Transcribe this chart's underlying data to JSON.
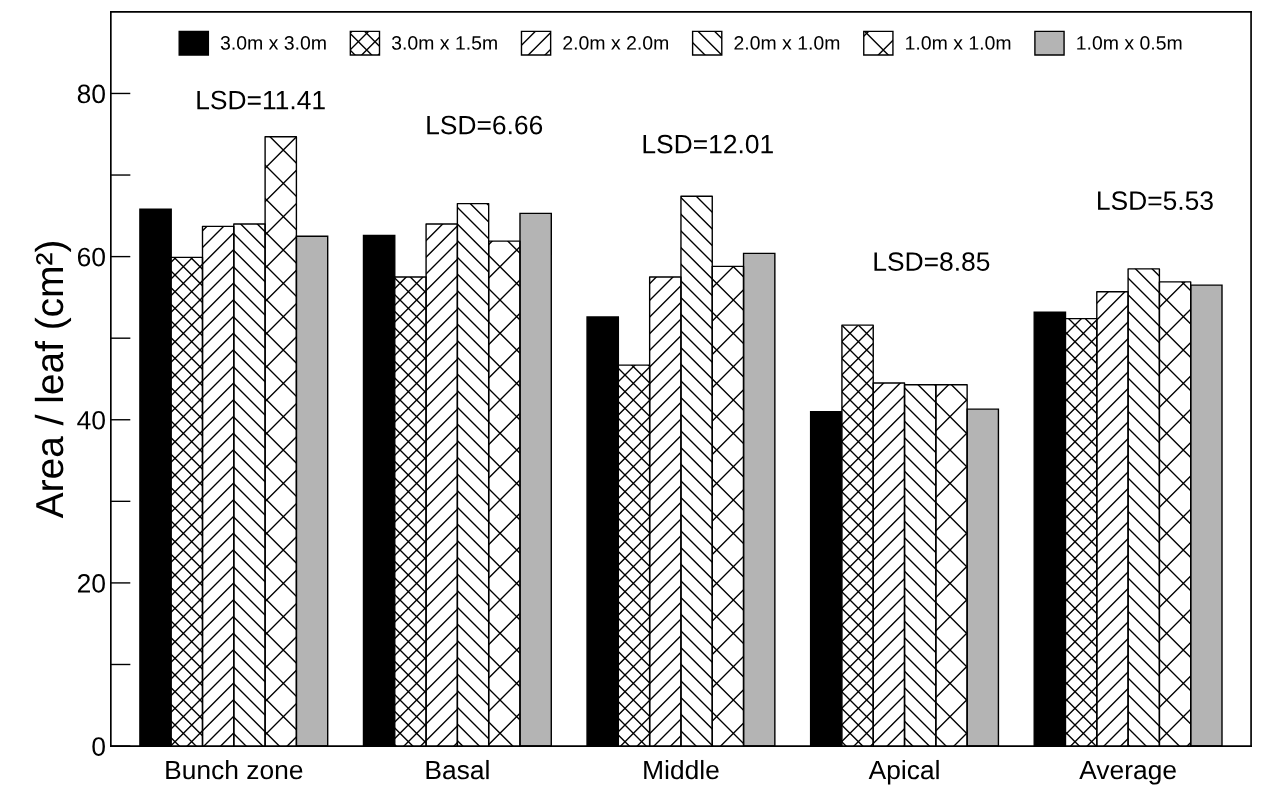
{
  "chart_data": {
    "type": "bar",
    "ylabel": "Area / leaf (cm²)",
    "categories": [
      "Bunch zone",
      "Basal",
      "Middle",
      "Apical",
      "Average"
    ],
    "series": [
      {
        "name": "3.0m x 3.0m",
        "color": "#000000",
        "values": [
          65.8,
          62.6,
          52.6,
          41.0,
          53.2
        ]
      },
      {
        "name": "3.0m x 1.5m",
        "color": "#ffffff",
        "values": [
          59.9,
          57.5,
          46.7,
          51.6,
          52.4
        ]
      },
      {
        "name": "2.0m x 2.0m",
        "color": "#ffffff",
        "values": [
          63.7,
          64.0,
          57.5,
          44.5,
          55.7
        ]
      },
      {
        "name": "2.0m x 1.0m",
        "color": "#ffffff",
        "values": [
          64.0,
          66.5,
          67.4,
          44.3,
          58.5
        ]
      },
      {
        "name": "1.0m x 1.0m",
        "color": "#ffffff",
        "values": [
          74.7,
          61.9,
          58.8,
          44.3,
          56.9
        ]
      },
      {
        "name": "1.0m x 0.5m",
        "color": "#b4b4b4",
        "values": [
          62.5,
          65.3,
          60.4,
          41.3,
          56.5
        ]
      }
    ],
    "ylim": [
      0,
      90
    ],
    "yticks": [
      0,
      20,
      40,
      60,
      80
    ],
    "annotations": [
      "LSD=11.41",
      "LSD=6.66",
      "LSD=12.01",
      "LSD=8.85",
      "LSD=5.53"
    ],
    "legend": "top",
    "grid": false
  }
}
